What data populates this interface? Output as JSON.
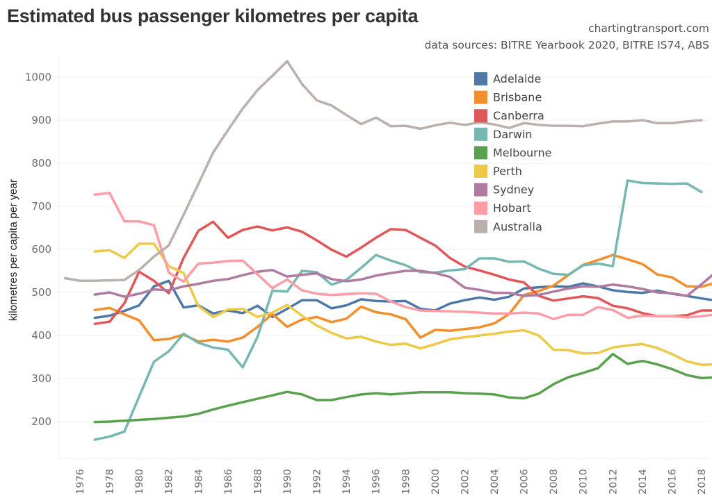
{
  "header": {
    "title": "Estimated bus passenger kilometres per capita",
    "credit": "chartingtransport.com",
    "sources": "data sources: BITRE Yearbook 2020, BITRE IS74, ABS"
  },
  "chart_data": {
    "type": "line",
    "title": "Estimated bus passenger kilometres per capita",
    "xlabel": "",
    "ylabel": "kilometres per capita per year",
    "ylim": [
      80,
      1090
    ],
    "xlim": [
      1974.5,
      2019.5
    ],
    "yticks": [
      200,
      300,
      400,
      500,
      600,
      700,
      800,
      900,
      1000
    ],
    "xticks": [
      1976,
      1978,
      1980,
      1982,
      1984,
      1986,
      1988,
      1990,
      1992,
      1994,
      1996,
      1998,
      2000,
      2002,
      2004,
      2006,
      2008,
      2010,
      2012,
      2014,
      2016,
      2018
    ],
    "grid": true,
    "legend_position": "top-right",
    "series": [
      {
        "name": "Adelaide",
        "color": "#4e79a7",
        "start_year": 1977,
        "values": [
          441,
          446,
          457,
          470,
          514,
          527,
          465,
          470,
          451,
          458,
          452,
          469,
          443,
          462,
          482,
          482,
          463,
          470,
          484,
          480,
          479,
          480,
          462,
          458,
          474,
          482,
          488,
          483,
          490,
          509,
          512,
          514,
          513,
          521,
          514,
          505,
          501,
          499,
          504,
          497,
          492,
          486,
          481
        ]
      },
      {
        "name": "Brisbane",
        "color": "#f28e2b",
        "start_year": 1977,
        "values": [
          459,
          464,
          449,
          435,
          389,
          392,
          402,
          386,
          390,
          386,
          395,
          420,
          450,
          420,
          437,
          443,
          431,
          439,
          467,
          454,
          449,
          438,
          395,
          413,
          411,
          415,
          419,
          428,
          450,
          494,
          503,
          516,
          540,
          564,
          575,
          587,
          577,
          566,
          542,
          535,
          514,
          513,
          523
        ]
      },
      {
        "name": "Canberra",
        "color": "#e15759",
        "start_year": 1977,
        "values": [
          427,
          432,
          475,
          548,
          527,
          498,
          580,
          643,
          664,
          627,
          645,
          653,
          644,
          651,
          641,
          621,
          599,
          583,
          604,
          627,
          647,
          645,
          627,
          609,
          580,
          560,
          551,
          541,
          530,
          523,
          492,
          481,
          486,
          491,
          487,
          469,
          463,
          452,
          445,
          445,
          447,
          458,
          458
        ]
      },
      {
        "name": "Darwin",
        "color": "#76b7b2",
        "start_year": 1977,
        "values": [
          158,
          165,
          177,
          258,
          339,
          363,
          404,
          383,
          372,
          367,
          326,
          397,
          504,
          502,
          550,
          547,
          518,
          529,
          557,
          587,
          574,
          563,
          547,
          546,
          551,
          554,
          579,
          579,
          571,
          572,
          555,
          543,
          541,
          563,
          567,
          561,
          760,
          754,
          753,
          752,
          753,
          733
        ]
      },
      {
        "name": "Melbourne",
        "color": "#59a14f",
        "start_year": 1977,
        "values": [
          199,
          200,
          202,
          204,
          206,
          209,
          212,
          218,
          228,
          237,
          245,
          253,
          261,
          269,
          263,
          250,
          250,
          257,
          263,
          266,
          263,
          266,
          268,
          268,
          268,
          266,
          265,
          263,
          256,
          254,
          265,
          287,
          303,
          313,
          324,
          357,
          334,
          341,
          333,
          322,
          308,
          301,
          303
        ]
      },
      {
        "name": "Perth",
        "color": "#edc948",
        "start_year": 1977,
        "values": [
          595,
          598,
          580,
          613,
          613,
          561,
          545,
          468,
          443,
          460,
          462,
          443,
          453,
          471,
          446,
          423,
          406,
          393,
          397,
          386,
          378,
          381,
          370,
          380,
          391,
          396,
          400,
          404,
          409,
          412,
          400,
          367,
          366,
          358,
          359,
          372,
          377,
          380,
          371,
          357,
          340,
          332,
          333
        ]
      },
      {
        "name": "Sydney",
        "color": "#b07aa1",
        "start_year": 1977,
        "values": [
          495,
          500,
          490,
          497,
          507,
          505,
          514,
          520,
          527,
          531,
          540,
          548,
          552,
          537,
          541,
          544,
          531,
          526,
          530,
          539,
          545,
          550,
          550,
          545,
          536,
          511,
          506,
          499,
          499,
          492,
          494,
          502,
          509,
          514,
          513,
          518,
          514,
          508,
          500,
          498,
          492,
          519,
          548
        ]
      },
      {
        "name": "Hobart",
        "color": "#ff9da7",
        "start_year": 1977,
        "values": [
          727,
          731,
          665,
          665,
          656,
          546,
          525,
          567,
          569,
          573,
          574,
          542,
          510,
          530,
          505,
          497,
          494,
          496,
          498,
          497,
          479,
          466,
          458,
          457,
          456,
          455,
          453,
          451,
          451,
          453,
          451,
          438,
          448,
          448,
          466,
          459,
          441,
          446,
          445,
          445,
          442,
          445,
          449
        ]
      },
      {
        "name": "Australia",
        "color": "#bab0ac",
        "start_year": 1975,
        "values": [
          533,
          527,
          527,
          528,
          529,
          552,
          583,
          609,
          680,
          752,
          825,
          877,
          927,
          970,
          1003,
          1037,
          984,
          946,
          934,
          912,
          891,
          906,
          886,
          887,
          880,
          888,
          894,
          889,
          895,
          890,
          882,
          893,
          889,
          887,
          887,
          886,
          892,
          897,
          897,
          900,
          893,
          893,
          897,
          900
        ]
      }
    ]
  }
}
